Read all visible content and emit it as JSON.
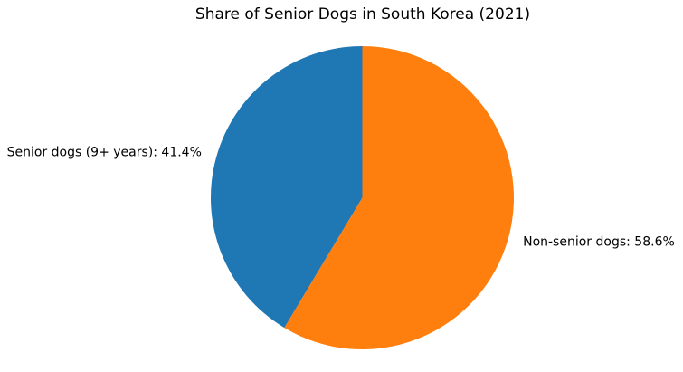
{
  "chart_data": {
    "type": "pie",
    "title": "Share of Senior Dogs in South Korea (2021)",
    "start_angle_deg": 90,
    "direction": "counterclockwise",
    "legend": "none",
    "labels_position": "outside",
    "background_color": "#ffffff",
    "text_color": "#000000",
    "slices": [
      {
        "label": "Senior dogs (9+ years)",
        "value": 41.4,
        "display_label": "Senior dogs (9+ years): 41.4%",
        "color": "#1f77b4"
      },
      {
        "label": "Non-senior dogs",
        "value": 58.6,
        "display_label": "Non-senior dogs: 58.6%",
        "color": "#ff7f0e"
      }
    ]
  }
}
